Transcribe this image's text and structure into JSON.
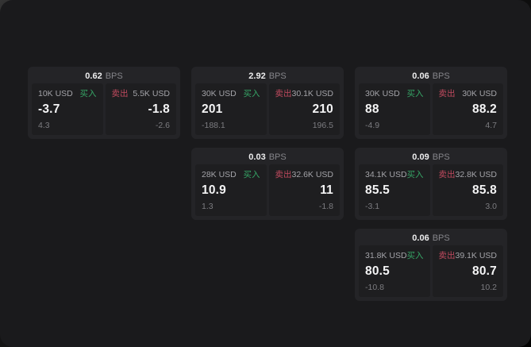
{
  "labels": {
    "buy": "买入",
    "sell": "卖出",
    "bps_unit": "BPS"
  },
  "colors": {
    "buy": "#36a566",
    "sell": "#c04a5e",
    "card_bg": "#242427",
    "tile_bg": "#1e1e20",
    "window_bg": "#1a1a1c"
  },
  "cards": [
    {
      "grid": {
        "row": 1,
        "col": 1
      },
      "bps_value": "0.62",
      "buy": {
        "notional": "10K USD",
        "price": "-3.7",
        "change": "4.3"
      },
      "sell": {
        "notional": "5.5K USD",
        "price": "-1.8",
        "change": "-2.6"
      }
    },
    {
      "grid": {
        "row": 1,
        "col": 2
      },
      "bps_value": "2.92",
      "buy": {
        "notional": "30K USD",
        "price": "201",
        "change": "-188.1"
      },
      "sell": {
        "notional": "30.1K USD",
        "price": "210",
        "change": "196.5"
      }
    },
    {
      "grid": {
        "row": 1,
        "col": 3
      },
      "bps_value": "0.06",
      "buy": {
        "notional": "30K USD",
        "price": "88",
        "change": "-4.9"
      },
      "sell": {
        "notional": "30K USD",
        "price": "88.2",
        "change": "4.7"
      }
    },
    {
      "grid": {
        "row": 2,
        "col": 2
      },
      "bps_value": "0.03",
      "buy": {
        "notional": "28K USD",
        "price": "10.9",
        "change": "1.3"
      },
      "sell": {
        "notional": "32.6K USD",
        "price": "11",
        "change": "-1.8"
      }
    },
    {
      "grid": {
        "row": 2,
        "col": 3
      },
      "bps_value": "0.09",
      "buy": {
        "notional": "34.1K USD",
        "price": "85.5",
        "change": "-3.1"
      },
      "sell": {
        "notional": "32.8K USD",
        "price": "85.8",
        "change": "3.0"
      }
    },
    {
      "grid": {
        "row": 3,
        "col": 3
      },
      "bps_value": "0.06",
      "buy": {
        "notional": "31.8K USD",
        "price": "80.5",
        "change": "-10.8"
      },
      "sell": {
        "notional": "39.1K USD",
        "price": "80.7",
        "change": "10.2"
      }
    }
  ]
}
